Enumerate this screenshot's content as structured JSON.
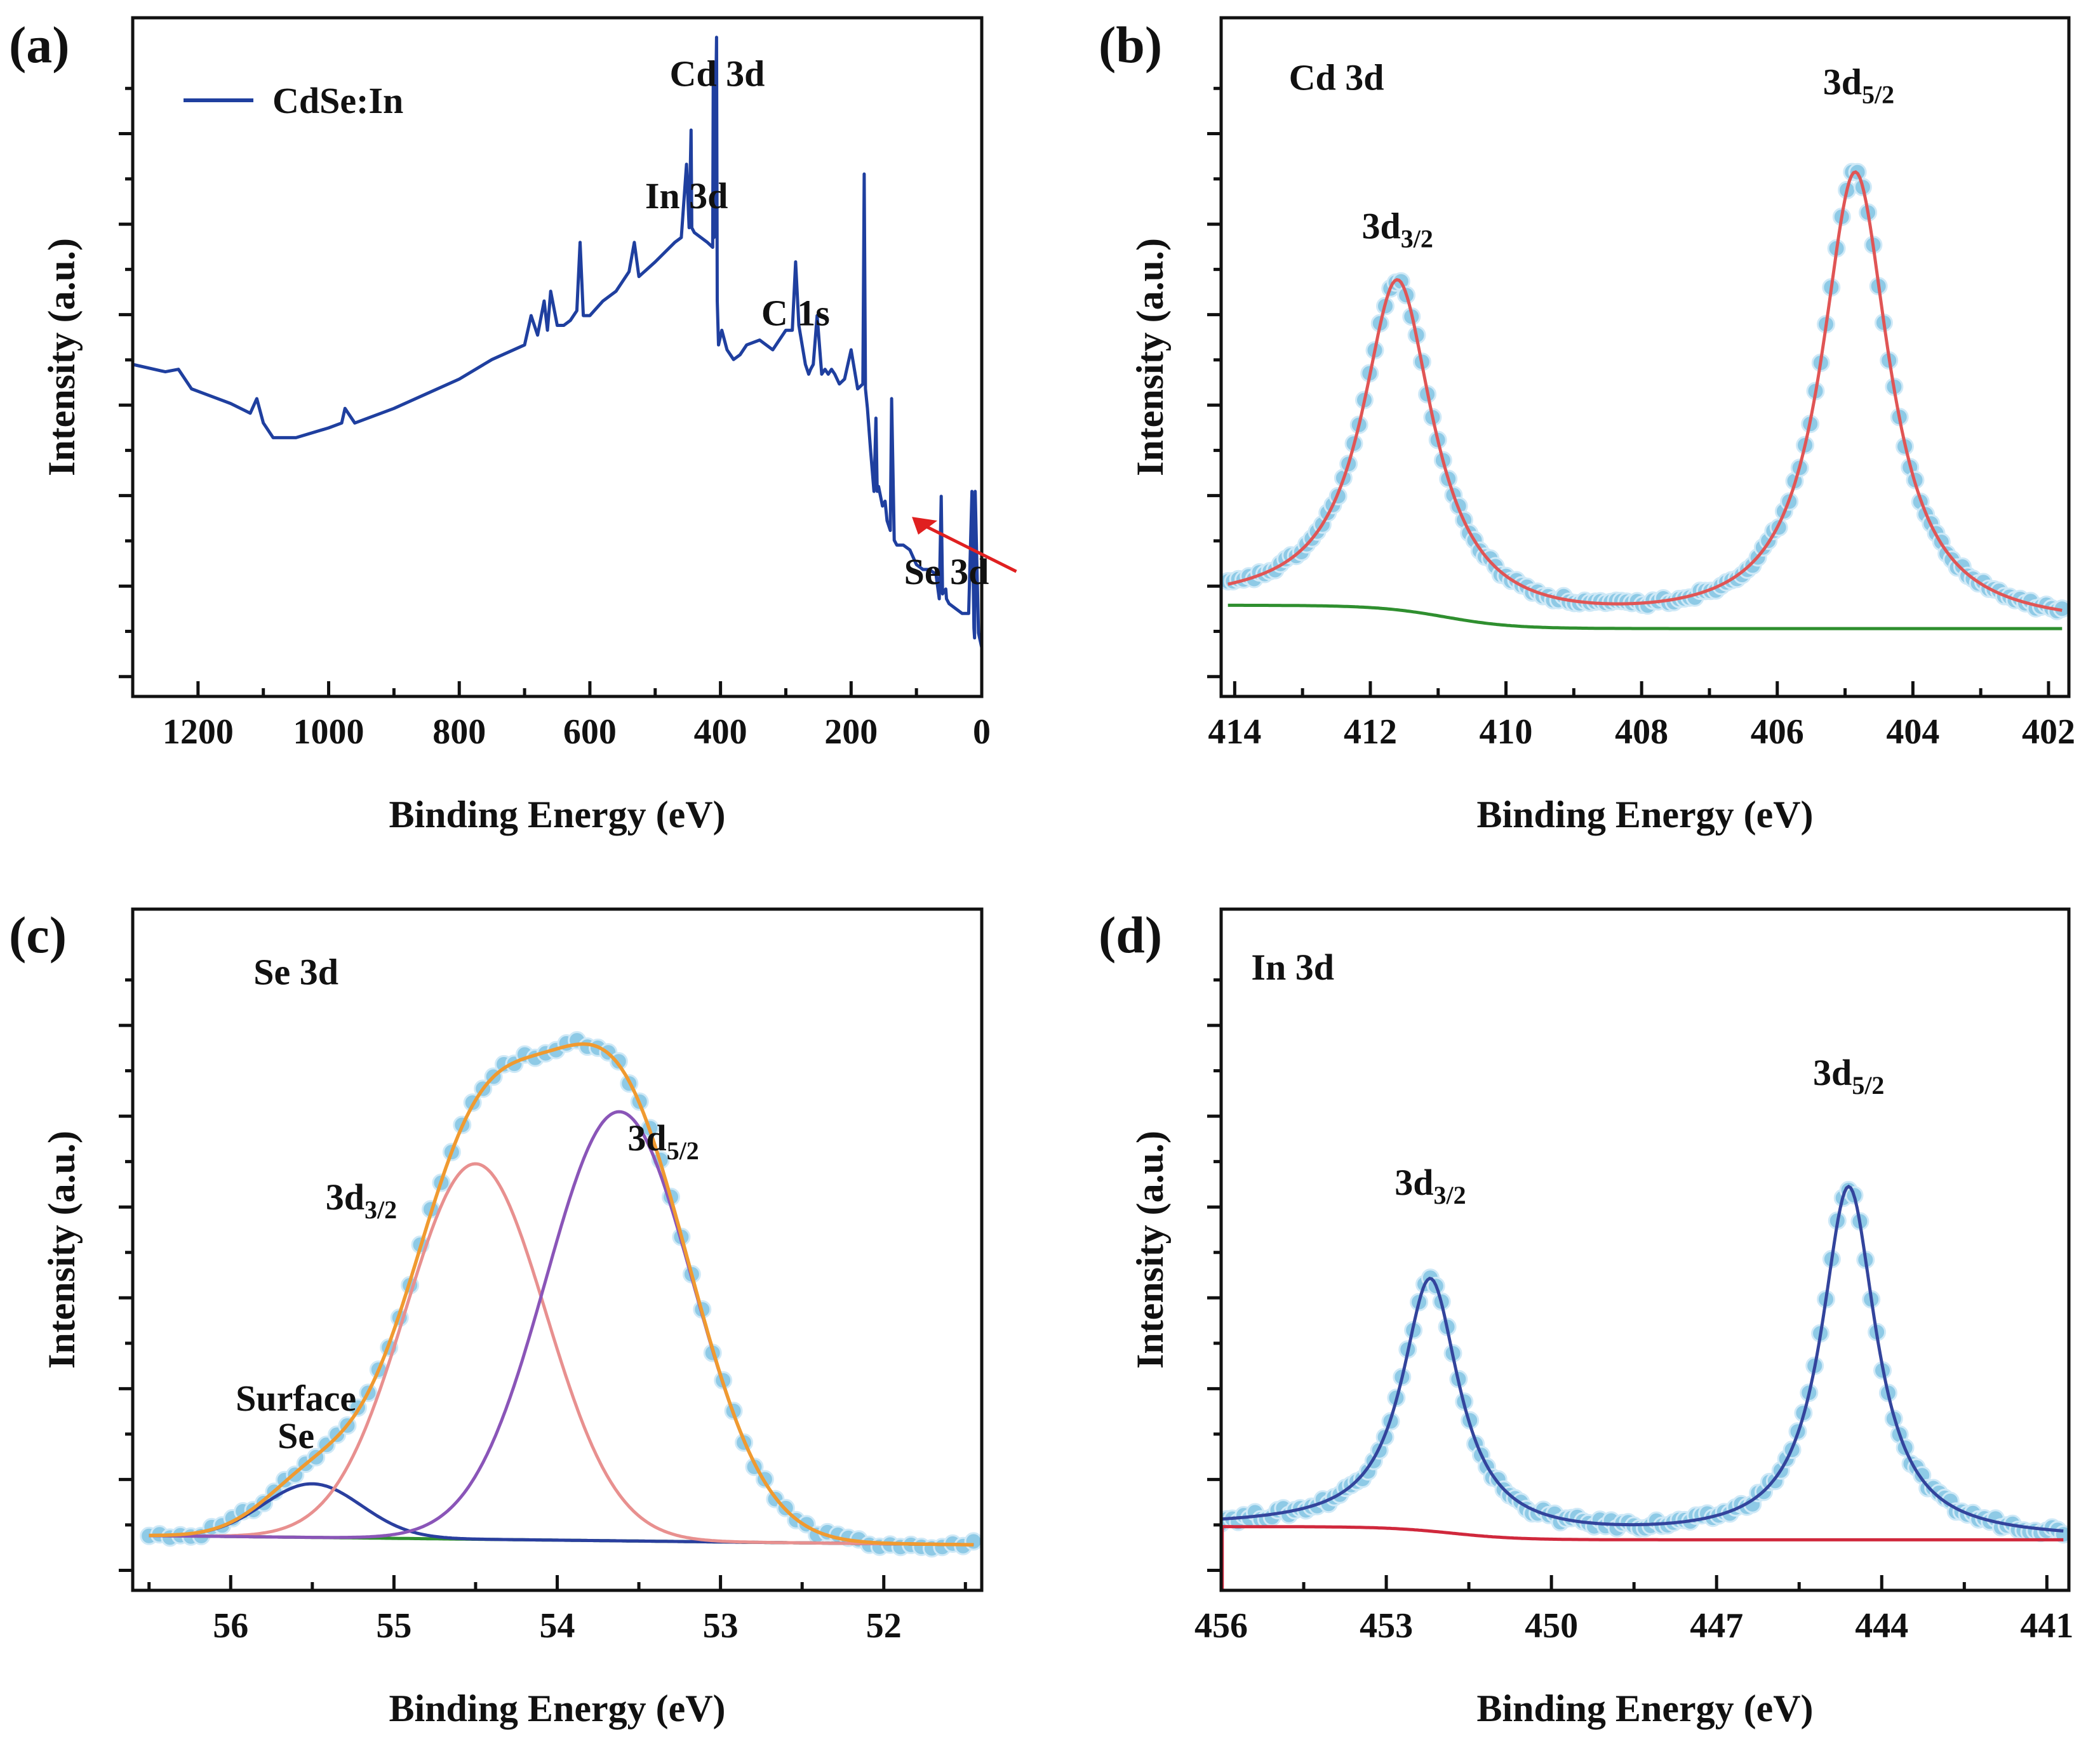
{
  "figure": {
    "panels": [
      {
        "letter": "(a)",
        "type": "line",
        "xlabel": "Binding Energy (eV)",
        "ylabel": "Intensity (a.u.)",
        "xlim": [
          1300,
          0
        ],
        "ylim": [
          -1.3,
          12.6
        ],
        "xticks": [
          1200,
          1000,
          800,
          600,
          400,
          200,
          0
        ],
        "legend": {
          "label": "CdSe:In",
          "placement": "top-left",
          "color": "#1f3f9f"
        },
        "annotations": [
          {
            "text": "Cd 3d",
            "x": 405,
            "y": 11.2
          },
          {
            "text": "In 3d",
            "x": 452,
            "y": 8.7
          },
          {
            "text": "C 1s",
            "x": 285,
            "y": 6.3
          },
          {
            "text": "Se 3d",
            "x": 54,
            "y": 1.0,
            "arrow": true
          }
        ],
        "series": [
          {
            "name": "CdSe:In",
            "color": "#1f3f9f",
            "x": [
              1300,
              1250,
              1230,
              1210,
              1190,
              1150,
              1120,
              1110,
              1100,
              1085,
              1070,
              1050,
              1000,
              980,
              975,
              960,
              900,
              850,
              800,
              750,
              700,
              690,
              680,
              670,
              665,
              660,
              650,
              640,
              630,
              620,
              615,
              610,
              600,
              580,
              560,
              540,
              532,
              525,
              500,
              470,
              460,
              452,
              448,
              445,
              444,
              440,
              430,
              420,
              412,
              411,
              410,
              406,
              405,
              403,
              398,
              390,
              380,
              370,
              360,
              340,
              320,
              300,
              290,
              285,
              280,
              270,
              265,
              262,
              258,
              252,
              245,
              240,
              235,
              230,
              225,
              218,
              210,
              200,
              190,
              182,
              180,
              178,
              175,
              170,
              165,
              162,
              160,
              158,
              152,
              148,
              145,
              140,
              138,
              134,
              130,
              120,
              110,
              100,
              90,
              80,
              70,
              65,
              62,
              60,
              55,
              54,
              50,
              40,
              30,
              20,
              15,
              12,
              11,
              10,
              5,
              0
            ],
            "y": [
              5.5,
              5.35,
              5.4,
              5.0,
              4.9,
              4.7,
              4.5,
              4.8,
              4.3,
              4.0,
              4.0,
              4.0,
              4.2,
              4.3,
              4.6,
              4.3,
              4.6,
              4.9,
              5.2,
              5.6,
              5.9,
              6.5,
              6.1,
              6.8,
              6.2,
              7.0,
              6.3,
              6.3,
              6.4,
              6.6,
              8.0,
              6.5,
              6.5,
              6.8,
              7.0,
              7.4,
              8.0,
              7.3,
              7.6,
              8.0,
              8.1,
              9.6,
              8.3,
              10.3,
              8.3,
              8.2,
              8.1,
              8.0,
              7.9,
              11.7,
              8.1,
              12.2,
              6.8,
              5.9,
              6.2,
              5.8,
              5.6,
              5.7,
              5.9,
              6.0,
              5.8,
              6.2,
              6.2,
              7.6,
              6.3,
              5.5,
              5.3,
              5.4,
              5.5,
              6.5,
              5.3,
              5.4,
              5.3,
              5.4,
              5.3,
              5.1,
              5.2,
              5.8,
              5.0,
              5.1,
              9.4,
              5.0,
              4.6,
              3.7,
              2.9,
              4.4,
              2.9,
              3.0,
              2.6,
              2.7,
              2.3,
              2.1,
              4.8,
              1.9,
              1.8,
              1.8,
              1.7,
              1.4,
              1.3,
              1.3,
              1.2,
              0.7,
              2.8,
              0.8,
              0.9,
              0.7,
              0.6,
              0.5,
              0.4,
              0.4,
              2.9,
              0.1,
              -0.1,
              2.9,
              0.0,
              -0.3
            ]
          }
        ]
      },
      {
        "letter": "(b)",
        "type": "line",
        "xlabel": "Binding Energy (eV)",
        "ylabel": "Intensity (a.u.)",
        "xlim": [
          414.2,
          401.7
        ],
        "ylim": [
          -0.1,
          1.5
        ],
        "xticks": [
          414,
          412,
          410,
          408,
          406,
          404,
          402
        ],
        "annotations": [
          {
            "text": "Cd 3d",
            "x": 412.5,
            "y": 1.33
          },
          {
            "main": "3d",
            "sub": "3/2",
            "x": 411.6,
            "y": 0.98
          },
          {
            "main": "3d",
            "sub": "5/2",
            "x": 404.8,
            "y": 1.32
          }
        ],
        "model": {
          "type": "two-peak-fit",
          "x_range": [
            414.1,
            401.8
          ],
          "peaks": [
            {
              "center": 411.6,
              "height": 0.77,
              "fwhm": 1.25
            },
            {
              "center": 404.85,
              "height": 1.07,
              "fwhm": 1.2
            }
          ],
          "background": {
            "high_side": 0.115,
            "low_side": 0.06,
            "step_center": 410.9,
            "step_width": 0.5
          },
          "data_points": 160,
          "data_noise": 0.008
        },
        "series": [
          {
            "name": "",
            "role": "data",
            "color": "#8ecae6"
          },
          {
            "name": "",
            "role": "fit",
            "color": "#e05555"
          },
          {
            "name": "",
            "role": "background",
            "color": "#2f8f2f"
          }
        ]
      },
      {
        "letter": "(c)",
        "type": "line",
        "xlabel": "Binding Energy (eV)",
        "ylabel": "Intensity (a.u.)",
        "xlim": [
          56.6,
          51.4
        ],
        "ylim": [
          -0.09,
          1.18
        ],
        "xticks": [
          56,
          55,
          54,
          53,
          52
        ],
        "annotations": [
          {
            "text": "Se 3d",
            "x": 55.6,
            "y": 1.04
          },
          {
            "main": "3d",
            "sub": "3/2",
            "x": 55.2,
            "y": 0.62
          },
          {
            "main": "3d",
            "sub": "5/2",
            "x": 53.35,
            "y": 0.73
          },
          {
            "text": "Surface",
            "x": 55.6,
            "y": 0.245
          },
          {
            "text": "Se",
            "x": 55.6,
            "y": 0.175
          }
        ],
        "model": {
          "type": "three-gaussian-fit",
          "x_range": [
            56.5,
            51.45
          ],
          "components": [
            {
              "name": "Surface Se",
              "center": 55.5,
              "height": 0.1,
              "sigma": 0.3,
              "color": "#2a3f9f"
            },
            {
              "name": "3d3/2",
              "center": 54.5,
              "height": 0.7,
              "sigma": 0.43,
              "color": "#e8908f"
            },
            {
              "name": "3d5/2",
              "center": 53.62,
              "height": 0.8,
              "sigma": 0.45,
              "color": "#8a55b8"
            }
          ],
          "background": {
            "high_side": 0.012,
            "low_side": -0.005
          },
          "envelope_color": "#f09a30",
          "data_points": 80,
          "data_noise": 0.008
        },
        "series": [
          {
            "name": "",
            "role": "data",
            "color": "#8ecae6"
          },
          {
            "name": "",
            "role": "envelope",
            "color": "#f09a30"
          },
          {
            "name": "Surface Se",
            "role": "component",
            "color": "#2a3f9f"
          },
          {
            "name": "3d3/2",
            "role": "component",
            "color": "#e8908f"
          },
          {
            "name": "3d5/2",
            "role": "component",
            "color": "#8a55b8"
          },
          {
            "name": "",
            "role": "background",
            "color": "#2f8f2f"
          }
        ]
      },
      {
        "letter": "(d)",
        "type": "line",
        "xlabel": "Binding Energy (eV)",
        "ylabel": "Intensity (a.u.)",
        "xlim": [
          456,
          440.6
        ],
        "ylim": [
          -0.1,
          1.45
        ],
        "xticks": [
          456,
          453,
          450,
          447,
          444,
          441
        ],
        "annotations": [
          {
            "text": "In 3d",
            "x": 454.7,
            "y": 1.29
          },
          {
            "main": "3d",
            "sub": "3/2",
            "x": 452.2,
            "y": 0.8
          },
          {
            "main": "3d",
            "sub": "5/2",
            "x": 444.6,
            "y": 1.05
          }
        ],
        "model": {
          "type": "two-peak-fit",
          "x_range": [
            456,
            440.7
          ],
          "peaks": [
            {
              "center": 452.2,
              "height": 0.57,
              "fwhm": 1.25
            },
            {
              "center": 444.6,
              "height": 0.8,
              "fwhm": 1.2
            }
          ],
          "background": {
            "high_side": 0.045,
            "low_side": 0.015,
            "step_center": 451.8,
            "step_width": 0.6
          },
          "data_points": 150,
          "data_noise": 0.01
        },
        "series": [
          {
            "name": "",
            "role": "data",
            "color": "#8ecae6"
          },
          {
            "name": "",
            "role": "fit",
            "color": "#33449c"
          },
          {
            "name": "",
            "role": "background",
            "color": "#d0283c"
          }
        ]
      }
    ]
  }
}
